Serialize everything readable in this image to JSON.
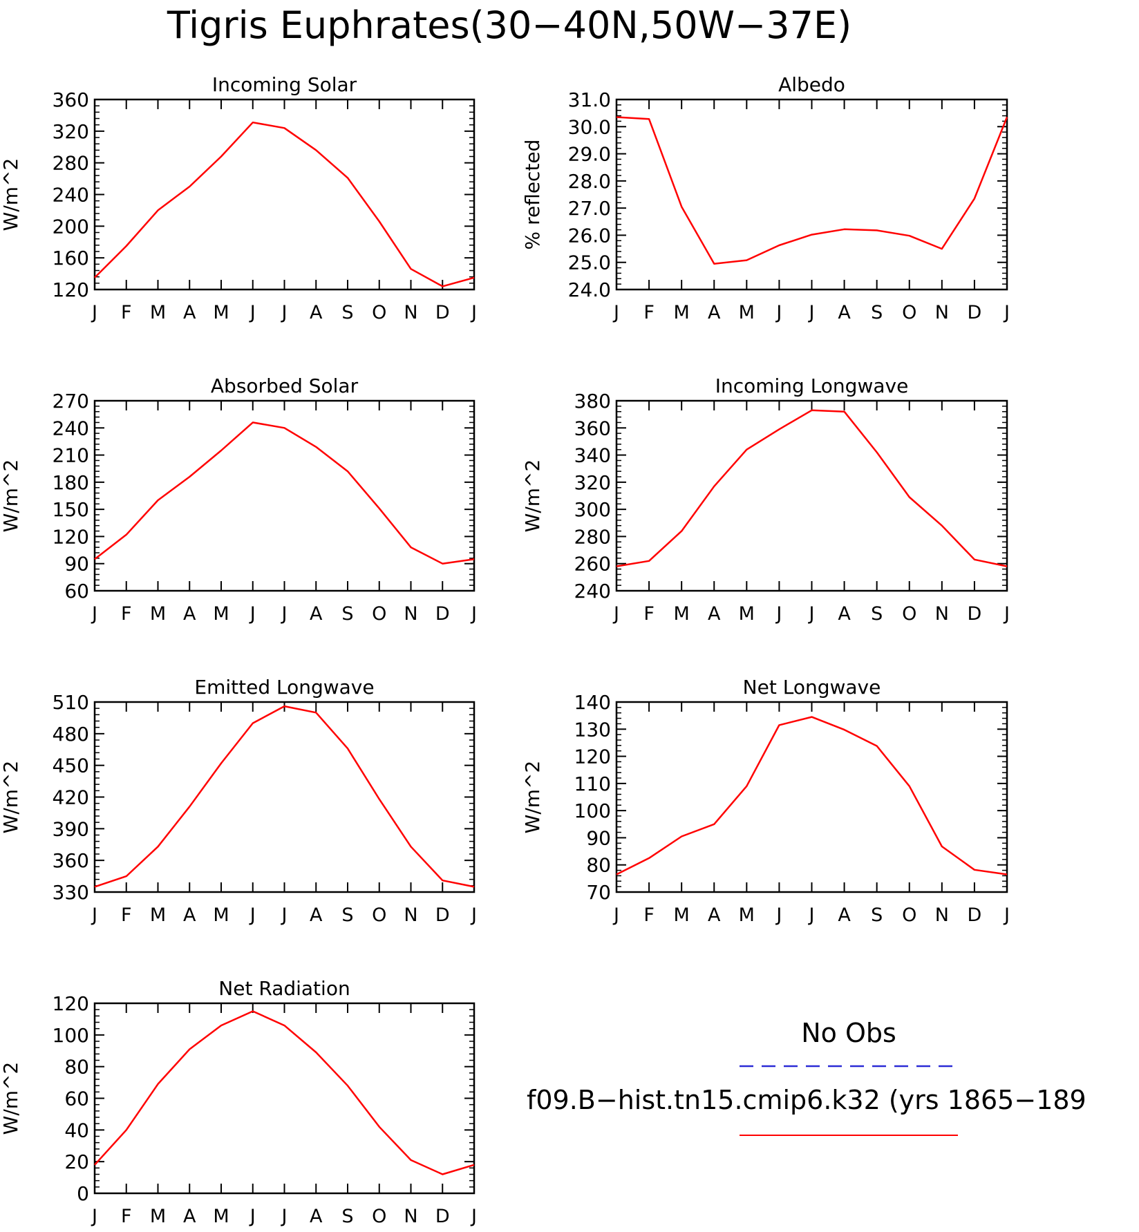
{
  "figure": {
    "title": "Tigris Euphrates(30−40N,50W−37E)"
  },
  "legend": {
    "obs_label": "No Obs",
    "obs_color": "#2b2bd6",
    "model_label": "f09.B−hist.tn15.cmip6.k32 (yrs 1865−189",
    "model_color": "#ff0000"
  },
  "chart_data": [
    {
      "type": "line",
      "title": "Incoming Solar",
      "ylabel": "W/m^2",
      "x": [
        "J",
        "F",
        "M",
        "A",
        "M",
        "J",
        "J",
        "A",
        "S",
        "O",
        "N",
        "D",
        "J"
      ],
      "ylim": [
        120,
        360
      ],
      "yticks": [
        "120",
        "160",
        "200",
        "240",
        "280",
        "320",
        "360"
      ],
      "series": [
        {
          "values": [
            135,
            175,
            220,
            250,
            288,
            331,
            324,
            296,
            261,
            206,
            146,
            124,
            135
          ]
        }
      ]
    },
    {
      "type": "line",
      "title": "Albedo",
      "ylabel": "% reflected",
      "x": [
        "J",
        "F",
        "M",
        "A",
        "M",
        "J",
        "J",
        "A",
        "S",
        "O",
        "N",
        "D",
        "J"
      ],
      "ylim": [
        24.0,
        31.0
      ],
      "yticks": [
        "24.0",
        "25.0",
        "26.0",
        "27.0",
        "28.0",
        "29.0",
        "30.0",
        "31.0"
      ],
      "series": [
        {
          "values": [
            30.35,
            30.28,
            27.05,
            24.95,
            25.08,
            25.63,
            26.02,
            26.22,
            26.18,
            25.98,
            25.5,
            27.35,
            30.35
          ]
        }
      ]
    },
    {
      "type": "line",
      "title": "Absorbed Solar",
      "ylabel": "W/m^2",
      "x": [
        "J",
        "F",
        "M",
        "A",
        "M",
        "J",
        "J",
        "A",
        "S",
        "O",
        "N",
        "D",
        "J"
      ],
      "ylim": [
        60,
        270
      ],
      "yticks": [
        "60",
        "90",
        "120",
        "150",
        "180",
        "210",
        "240",
        "270"
      ],
      "series": [
        {
          "values": [
            95,
            122,
            160,
            186,
            215,
            246,
            240,
            219,
            192,
            151,
            108,
            90,
            95
          ]
        }
      ]
    },
    {
      "type": "line",
      "title": "Incoming Longwave",
      "ylabel": "W/m^2",
      "x": [
        "J",
        "F",
        "M",
        "A",
        "M",
        "J",
        "J",
        "A",
        "S",
        "O",
        "N",
        "D",
        "J"
      ],
      "ylim": [
        240,
        380
      ],
      "yticks": [
        "240",
        "260",
        "280",
        "300",
        "320",
        "340",
        "360",
        "380"
      ],
      "series": [
        {
          "values": [
            258,
            262,
            284,
            317,
            344,
            359,
            373,
            372,
            342,
            309,
            288,
            263,
            258
          ]
        }
      ]
    },
    {
      "type": "line",
      "title": "Emitted Longwave",
      "ylabel": "W/m^2",
      "x": [
        "J",
        "F",
        "M",
        "A",
        "M",
        "J",
        "J",
        "A",
        "S",
        "O",
        "N",
        "D",
        "J"
      ],
      "ylim": [
        330,
        510
      ],
      "yticks": [
        "330",
        "360",
        "390",
        "420",
        "450",
        "480",
        "510"
      ],
      "series": [
        {
          "values": [
            335,
            345,
            373,
            411,
            452,
            490,
            506,
            500,
            466,
            418,
            373,
            341,
            335
          ]
        }
      ]
    },
    {
      "type": "line",
      "title": "Net Longwave",
      "ylabel": "W/m^2",
      "x": [
        "J",
        "F",
        "M",
        "A",
        "M",
        "J",
        "J",
        "A",
        "S",
        "O",
        "N",
        "D",
        "J"
      ],
      "ylim": [
        70,
        140
      ],
      "yticks": [
        "70",
        "80",
        "90",
        "100",
        "110",
        "120",
        "130",
        "140"
      ],
      "series": [
        {
          "values": [
            76.5,
            82.5,
            90.5,
            95,
            109,
            131.5,
            134.5,
            129.8,
            123.8,
            109,
            86.8,
            78.2,
            76.5
          ]
        }
      ]
    },
    {
      "type": "line",
      "title": "Net Radiation",
      "ylabel": "W/m^2",
      "x": [
        "J",
        "F",
        "M",
        "A",
        "M",
        "J",
        "J",
        "A",
        "S",
        "O",
        "N",
        "D",
        "J"
      ],
      "ylim": [
        0,
        120
      ],
      "yticks": [
        "0",
        "20",
        "40",
        "60",
        "80",
        "100",
        "120"
      ],
      "series": [
        {
          "values": [
            18,
            40,
            69,
            91,
            106,
            115,
            106,
            89,
            68,
            42,
            21,
            12,
            18
          ]
        }
      ]
    }
  ]
}
